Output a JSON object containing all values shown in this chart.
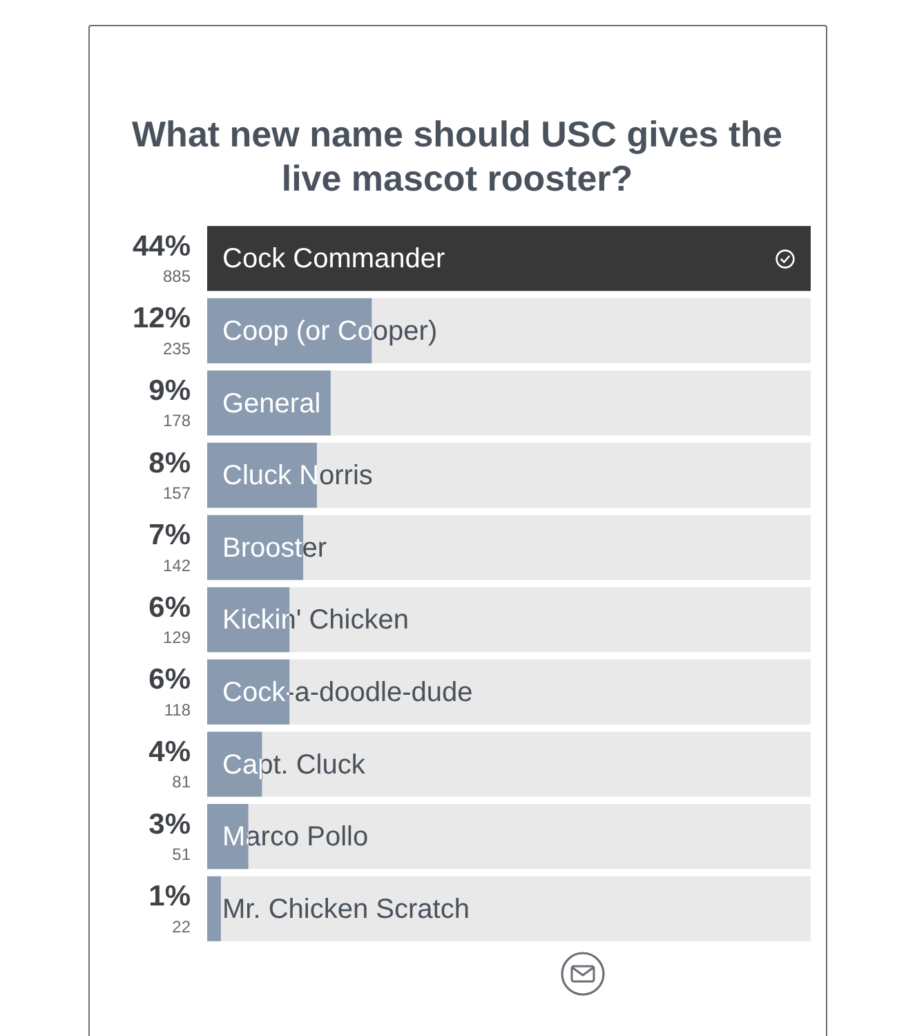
{
  "chart_data": {
    "type": "bar",
    "orientation": "horizontal",
    "title": "What new name should USC gives the live mascot rooster?",
    "categories": [
      "Cock Commander",
      "Coop (or Cooper)",
      "General",
      "Cluck Norris",
      "Brooster",
      "Kickin' Chicken",
      "Cock-a-doodle-dude",
      "Capt. Cluck",
      "Marco Pollo",
      "Mr. Chicken Scratch"
    ],
    "values": [
      44,
      12,
      9,
      8,
      7,
      6,
      6,
      4,
      3,
      1
    ],
    "colors": [
      "#383838",
      "#8a9bb0",
      "#8a9bb0",
      "#8a9bb0",
      "#8a9bb0",
      "#8a9bb0",
      "#8a9bb0",
      "#8a9bb0",
      "#8a9bb0",
      "#8a9bb0"
    ],
    "value_labels": [
      "44%",
      "12%",
      "9%",
      "8%",
      "7%",
      "6%",
      "6%",
      "4%",
      "3%",
      "1%"
    ],
    "annotations": [
      "885",
      "235",
      "178",
      "157",
      "142",
      "129",
      "118",
      "81",
      "51",
      "22"
    ]
  }
}
